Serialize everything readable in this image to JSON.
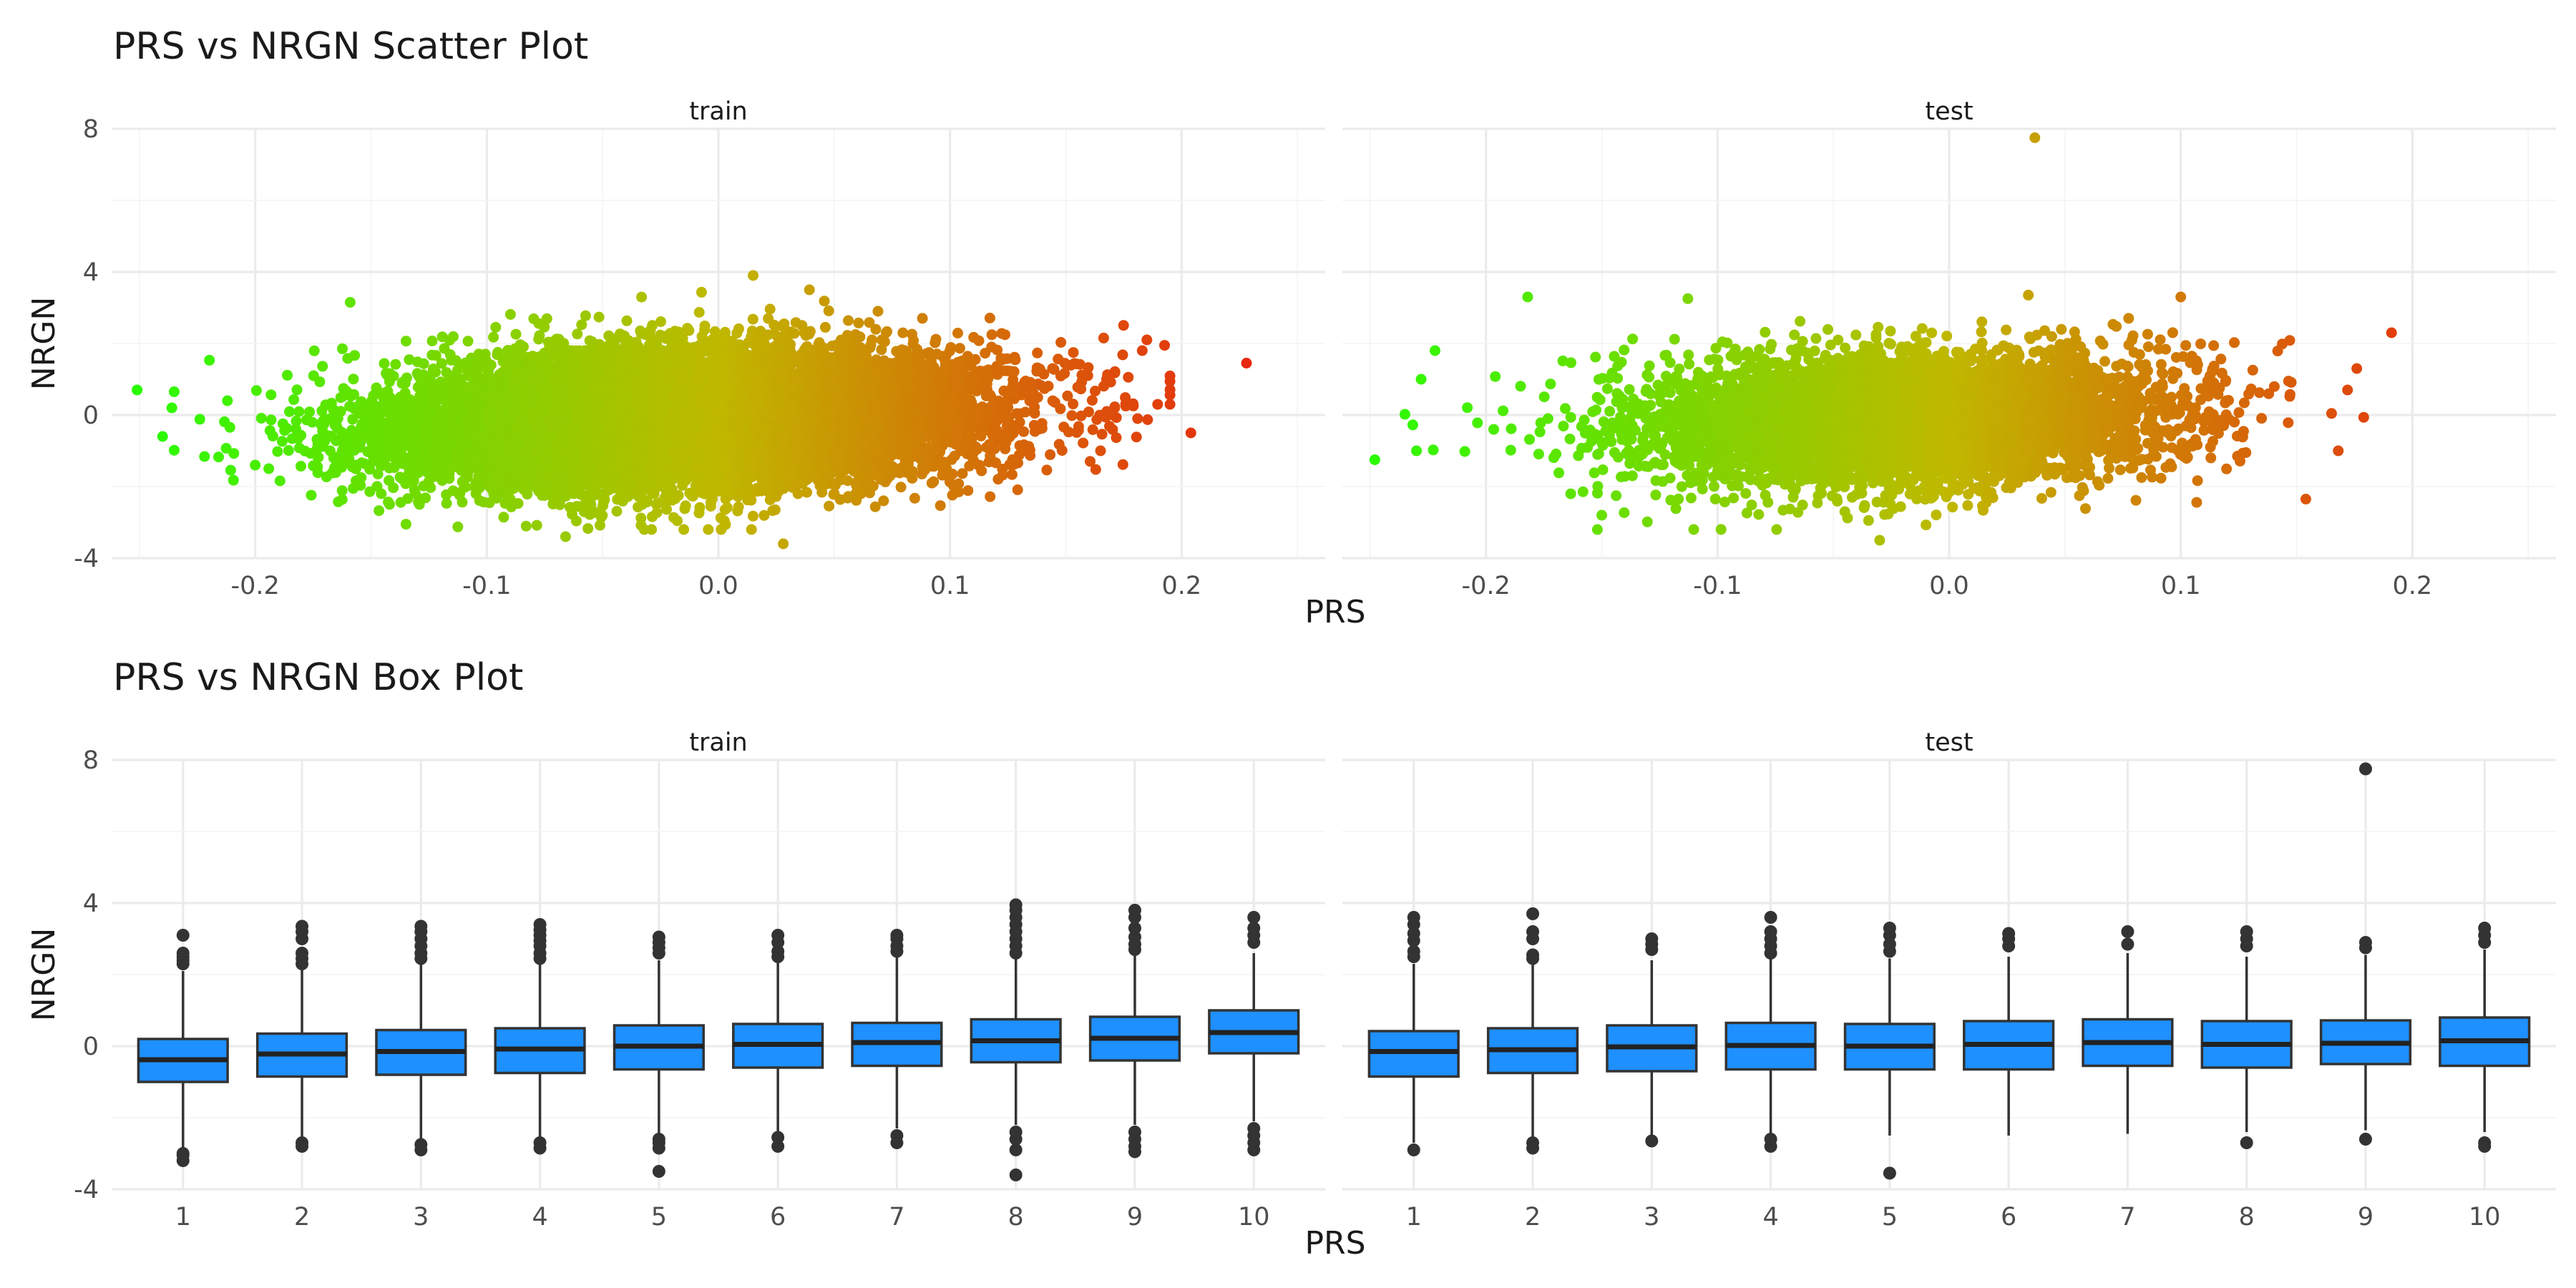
{
  "chart_data": [
    {
      "type": "scatter",
      "title": "PRS vs NRGN Scatter Plot",
      "xlabel": "PRS",
      "ylabel": "NRGN",
      "grid": true,
      "legend": "none",
      "color_scale": {
        "low": "#22ff00",
        "mid": "#c0b800",
        "high": "#ee1111",
        "mapped_to": "PRS"
      },
      "xticks": [
        "-0.2",
        "-0.1",
        "0.0",
        "0.1",
        "0.2"
      ],
      "yticks": [
        "-4",
        "0",
        "4",
        "8"
      ],
      "panels": [
        {
          "name": "train",
          "xlim": [
            -0.262,
            0.262
          ],
          "ylim": [
            -4,
            8
          ],
          "n_points": 14000,
          "core_distribution": {
            "prs_mean": -0.015,
            "prs_sd": 0.06,
            "nrgn_mean": -0.1,
            "nrgn_sd": 0.9,
            "slope": 2.5
          },
          "notable_points": [
            {
              "x": 0.228,
              "y": 1.45
            },
            {
              "x": 0.204,
              "y": -0.5
            },
            {
              "x": -0.251,
              "y": 0.7
            },
            {
              "x": -0.236,
              "y": 0.2
            },
            {
              "x": -0.24,
              "y": -0.6
            },
            {
              "x": -0.159,
              "y": 3.15
            },
            {
              "x": 0.015,
              "y": 3.9
            },
            {
              "x": -0.066,
              "y": -3.4
            },
            {
              "x": 0.028,
              "y": -3.6
            },
            {
              "x": 0.185,
              "y": 2.1
            },
            {
              "x": 0.183,
              "y": 1.8
            },
            {
              "x": 0.181,
              "y": -0.1
            },
            {
              "x": 0.165,
              "y": -1.0
            },
            {
              "x": -0.2,
              "y": -1.4
            },
            {
              "x": -0.212,
              "y": 0.4
            }
          ]
        },
        {
          "name": "test",
          "xlim": [
            -0.262,
            0.262
          ],
          "ylim": [
            -4,
            8
          ],
          "n_points": 6000,
          "core_distribution": {
            "prs_mean": -0.02,
            "prs_sd": 0.055,
            "nrgn_mean": -0.1,
            "nrgn_sd": 0.9,
            "slope": 2.0
          },
          "notable_points": [
            {
              "x": 0.037,
              "y": 7.75
            },
            {
              "x": -0.248,
              "y": -1.25
            },
            {
              "x": -0.222,
              "y": 1.8
            },
            {
              "x": -0.228,
              "y": 1.0
            },
            {
              "x": -0.23,
              "y": -1.0
            },
            {
              "x": -0.182,
              "y": 3.3
            },
            {
              "x": 0.191,
              "y": 2.3
            },
            {
              "x": 0.176,
              "y": 1.3
            },
            {
              "x": 0.172,
              "y": 0.7
            },
            {
              "x": 0.168,
              "y": -1.0
            },
            {
              "x": -0.03,
              "y": -3.5
            },
            {
              "x": 0.1,
              "y": 3.3
            },
            {
              "x": 0.154,
              "y": -2.35
            },
            {
              "x": -0.15,
              "y": -2.8
            }
          ]
        }
      ]
    },
    {
      "type": "box",
      "title": "PRS vs NRGN Box Plot",
      "xlabel": "PRS",
      "ylabel": "NRGN",
      "grid": true,
      "legend": "none",
      "categories": [
        "1",
        "2",
        "3",
        "4",
        "5",
        "6",
        "7",
        "8",
        "9",
        "10"
      ],
      "yticks": [
        "-4",
        "0",
        "4",
        "8"
      ],
      "box_color": "#1e90ff",
      "panels": [
        {
          "name": "train",
          "ylim": [
            -4,
            8
          ],
          "boxes": [
            {
              "q1": -1.0,
              "median": -0.38,
              "q3": 0.2,
              "whisker_low": -2.9,
              "whisker_high": 2.1,
              "outliers": [
                -3.2,
                -3.05,
                -3.0,
                2.3,
                2.4,
                2.5,
                2.6,
                3.1
              ]
            },
            {
              "q1": -0.85,
              "median": -0.22,
              "q3": 0.35,
              "whisker_low": -2.6,
              "whisker_high": 2.15,
              "outliers": [
                -2.8,
                -2.7,
                2.3,
                2.45,
                2.6,
                3.0,
                3.2,
                3.35
              ]
            },
            {
              "q1": -0.8,
              "median": -0.15,
              "q3": 0.45,
              "whisker_low": -2.6,
              "whisker_high": 2.3,
              "outliers": [
                -2.9,
                -2.75,
                2.45,
                2.6,
                2.8,
                3.0,
                3.2,
                3.35
              ]
            },
            {
              "q1": -0.75,
              "median": -0.08,
              "q3": 0.5,
              "whisker_low": -2.65,
              "whisker_high": 2.3,
              "outliers": [
                -2.85,
                -2.7,
                2.45,
                2.6,
                2.8,
                2.95,
                3.1,
                3.25,
                3.4
              ]
            },
            {
              "q1": -0.65,
              "median": 0.0,
              "q3": 0.58,
              "whisker_low": -2.5,
              "whisker_high": 2.4,
              "outliers": [
                -3.5,
                -2.85,
                -2.7,
                -2.6,
                2.6,
                2.75,
                2.9,
                3.05
              ]
            },
            {
              "q1": -0.6,
              "median": 0.05,
              "q3": 0.62,
              "whisker_low": -2.4,
              "whisker_high": 2.4,
              "outliers": [
                -2.8,
                -2.55,
                2.5,
                2.65,
                2.9,
                3.1
              ]
            },
            {
              "q1": -0.55,
              "median": 0.1,
              "q3": 0.65,
              "whisker_low": -2.3,
              "whisker_high": 2.5,
              "outliers": [
                -2.7,
                -2.5,
                2.65,
                2.8,
                3.0,
                3.1
              ]
            },
            {
              "q1": -0.45,
              "median": 0.15,
              "q3": 0.75,
              "whisker_low": -2.2,
              "whisker_high": 2.5,
              "outliers": [
                -3.6,
                -2.9,
                -2.6,
                -2.4,
                2.6,
                2.8,
                3.0,
                3.2,
                3.4,
                3.6,
                3.8,
                3.95
              ]
            },
            {
              "q1": -0.4,
              "median": 0.22,
              "q3": 0.82,
              "whisker_low": -2.2,
              "whisker_high": 2.55,
              "outliers": [
                -2.95,
                -2.8,
                -2.6,
                -2.4,
                2.7,
                2.85,
                3.05,
                3.3,
                3.6,
                3.8
              ]
            },
            {
              "q1": -0.2,
              "median": 0.38,
              "q3": 1.0,
              "whisker_low": -2.1,
              "whisker_high": 2.6,
              "outliers": [
                -2.9,
                -2.7,
                -2.5,
                -2.3,
                2.9,
                3.1,
                3.3,
                3.6
              ]
            }
          ]
        },
        {
          "name": "test",
          "ylim": [
            -4,
            8
          ],
          "boxes": [
            {
              "q1": -0.85,
              "median": -0.15,
              "q3": 0.42,
              "whisker_low": -2.7,
              "whisker_high": 2.3,
              "outliers": [
                -2.9,
                2.5,
                2.65,
                2.95,
                3.15,
                3.4,
                3.6
              ]
            },
            {
              "q1": -0.75,
              "median": -0.1,
              "q3": 0.5,
              "whisker_low": -2.6,
              "whisker_high": 2.3,
              "outliers": [
                -2.85,
                -2.7,
                2.45,
                2.55,
                3.0,
                3.2,
                3.7
              ]
            },
            {
              "q1": -0.7,
              "median": -0.02,
              "q3": 0.58,
              "whisker_low": -2.6,
              "whisker_high": 2.4,
              "outliers": [
                -2.65,
                2.7,
                2.85,
                3.0
              ]
            },
            {
              "q1": -0.65,
              "median": 0.02,
              "q3": 0.65,
              "whisker_low": -2.5,
              "whisker_high": 2.45,
              "outliers": [
                -2.8,
                -2.6,
                2.6,
                2.8,
                3.0,
                3.2,
                3.6
              ]
            },
            {
              "q1": -0.65,
              "median": 0.0,
              "q3": 0.62,
              "whisker_low": -2.5,
              "whisker_high": 2.45,
              "outliers": [
                -3.55,
                2.65,
                2.85,
                3.1,
                3.3
              ]
            },
            {
              "q1": -0.65,
              "median": 0.05,
              "q3": 0.7,
              "whisker_low": -2.5,
              "whisker_high": 2.5,
              "outliers": [
                2.8,
                3.0,
                3.15
              ]
            },
            {
              "q1": -0.55,
              "median": 0.1,
              "q3": 0.75,
              "whisker_low": -2.45,
              "whisker_high": 2.6,
              "outliers": [
                2.85,
                3.2
              ]
            },
            {
              "q1": -0.6,
              "median": 0.05,
              "q3": 0.7,
              "whisker_low": -2.4,
              "whisker_high": 2.5,
              "outliers": [
                -2.7,
                2.8,
                3.0,
                3.2
              ]
            },
            {
              "q1": -0.5,
              "median": 0.08,
              "q3": 0.72,
              "whisker_low": -2.35,
              "whisker_high": 2.55,
              "outliers": [
                -2.6,
                2.75,
                2.9,
                7.75
              ]
            },
            {
              "q1": -0.55,
              "median": 0.15,
              "q3": 0.8,
              "whisker_low": -2.4,
              "whisker_high": 2.7,
              "outliers": [
                -2.8,
                -2.7,
                2.9,
                3.1,
                3.3
              ]
            }
          ]
        }
      ]
    }
  ]
}
